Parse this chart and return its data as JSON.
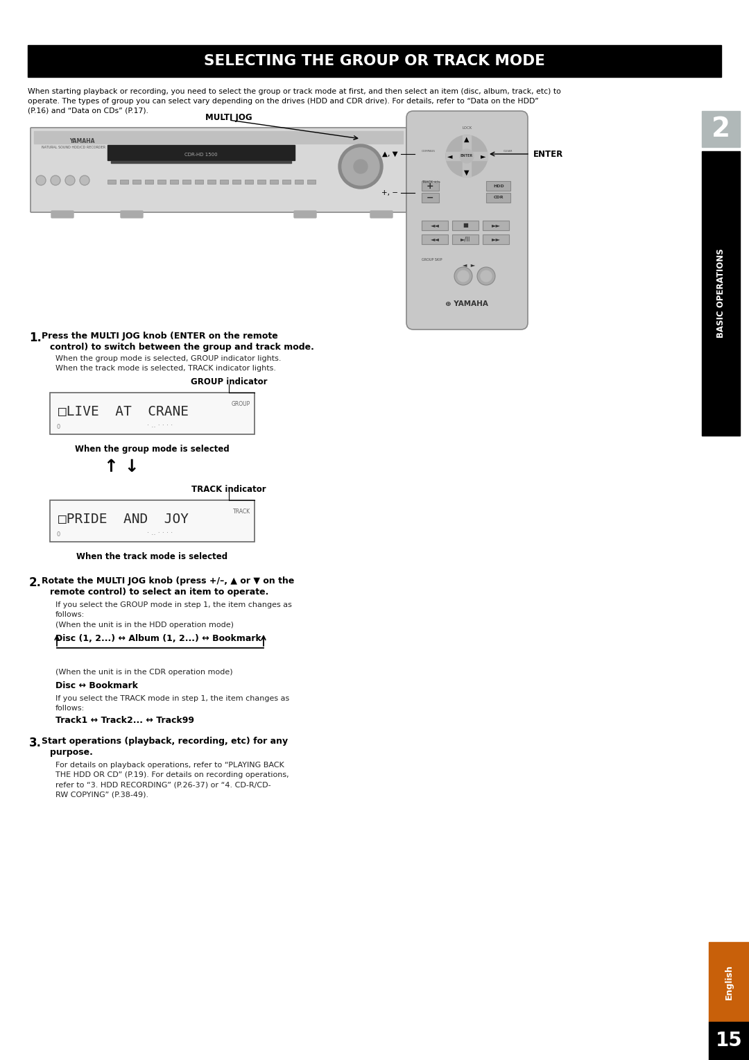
{
  "title": "SELECTING THE GROUP OR TRACK MODE",
  "page_bg": "#ffffff",
  "page_number": "15",
  "sidebar_text": "BASIC OPERATIONS",
  "intro_text1": "When starting playback or recording, you need to select the group or track mode at first, and then select an item (disc, album, track, etc) to",
  "intro_text2": "operate. The types of group you can select vary depending on the drives (HDD and CDR drive). For details, refer to “Data on the HDD”",
  "intro_text3": "(P.16) and “Data on CDs” (P.17).",
  "multi_jog_label": "MULTI JOG",
  "enter_label": "ENTER",
  "up_down_arrows": "▲, ▼",
  "plus_minus": "+, –",
  "group_indicator_label": "GROUP indicator",
  "group_display_text": "□LIVE  AT  CRANE",
  "group_display_sub": "GROUP",
  "group_caption": "When the group mode is selected",
  "track_indicator_label": "TRACK indicator",
  "track_display_text": "□PRIDE  AND  JOY",
  "track_display_sub": "TRACK",
  "track_caption": "When the track mode is selected",
  "hdd_mode_label": "(When the unit is in the HDD operation mode)",
  "hdd_chain": "Disc (1, 2...) ↔ Album (1, 2...) ↔ Bookmark",
  "cdr_mode_label": "(When the unit is in the CDR operation mode)",
  "cdr_chain": "Disc ↔ Bookmark",
  "track_chain": "Track1 ↔ Track2... ↔ Track99",
  "english_bg": "#c8600a",
  "english_text": "English",
  "chapter_num": "2",
  "chapter_bg": "#b0b8b8"
}
